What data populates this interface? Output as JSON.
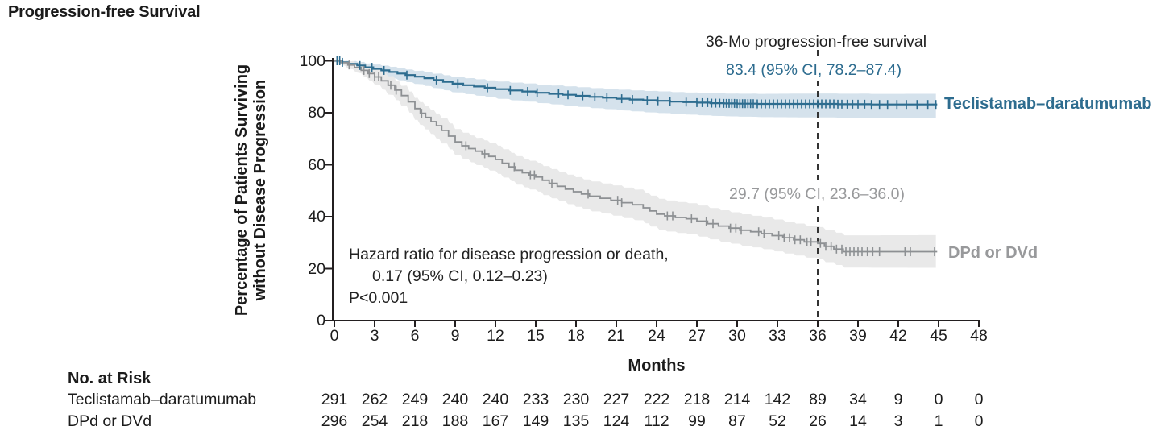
{
  "title": "Progression-free Survival",
  "colors": {
    "teclistamab_line": "#2d6c8f",
    "teclistamab_band": "#d5e2ec",
    "teclistamab_text": "#2d6c8f",
    "control_line": "#8d9093",
    "control_band": "#e9e9e9",
    "control_text": "#98999b",
    "axis": "#231f20",
    "dashed_line": "#333333",
    "dark_text": "#222222"
  },
  "chart_data": {
    "type": "line",
    "subtype": "kaplan-meier-step",
    "title": "Progression-free Survival",
    "xlabel": "Months",
    "ylabel_line1": "Percentage of Patients Surviving",
    "ylabel_line2": "without Disease Progression",
    "xlim": [
      0,
      48
    ],
    "ylim": [
      0,
      100
    ],
    "x_ticks": [
      0,
      3,
      6,
      9,
      12,
      15,
      18,
      21,
      24,
      27,
      30,
      33,
      36,
      39,
      42,
      45,
      48
    ],
    "y_ticks": [
      0,
      20,
      40,
      60,
      80,
      100
    ],
    "grid": "off",
    "dashed_line_x": 36,
    "annotation_heading": "36-Mo progression-free survival",
    "hazard_note_line1": "Hazard ratio for disease progression or death,",
    "hazard_note_line2": "0.17 (95% CI, 0.12–0.23)",
    "hazard_note_line3": "P<0.001",
    "series": [
      {
        "name": "Teclistamab–daratumumab",
        "ci_label": "83.4 (95% CI, 78.2–87.4)",
        "value_36mo": 83.4,
        "ci_36mo": [
          78.2,
          87.4
        ],
        "end_x": 44.9,
        "steps": [
          [
            0,
            100
          ],
          [
            0.6,
            99.4
          ],
          [
            1.1,
            98.8
          ],
          [
            1.7,
            98.2
          ],
          [
            2.3,
            97.5
          ],
          [
            2.9,
            96.9
          ],
          [
            3.5,
            96.3
          ],
          [
            4.1,
            95.7
          ],
          [
            4.7,
            95.1
          ],
          [
            5.3,
            94.5
          ],
          [
            6,
            93.9
          ],
          [
            6.7,
            93.3
          ],
          [
            7.4,
            92.6
          ],
          [
            8.1,
            91.9
          ],
          [
            8.8,
            91.2
          ],
          [
            9.6,
            90.6
          ],
          [
            10.4,
            90.1
          ],
          [
            11.2,
            89.6
          ],
          [
            12,
            89.1
          ],
          [
            13,
            88.6
          ],
          [
            14,
            88.2
          ],
          [
            15,
            87.7
          ],
          [
            16,
            87.3
          ],
          [
            17,
            86.9
          ],
          [
            18,
            86.5
          ],
          [
            19,
            86.1
          ],
          [
            20,
            85.8
          ],
          [
            21,
            85.4
          ],
          [
            22,
            85.1
          ],
          [
            23,
            84.8
          ],
          [
            24,
            84.6
          ],
          [
            25,
            84.3
          ],
          [
            26,
            84.1
          ],
          [
            27,
            83.9
          ],
          [
            28,
            83.7
          ],
          [
            29,
            83.6
          ],
          [
            30,
            83.5
          ],
          [
            31.5,
            83.4
          ],
          [
            36,
            83.4
          ],
          [
            37.5,
            83.3
          ],
          [
            40,
            83.2
          ],
          [
            44.9,
            83.2
          ]
        ],
        "ci_x": [
          0,
          2,
          4,
          8,
          12,
          18,
          24,
          30,
          36,
          45
        ],
        "ci_lower_offset": [
          0.5,
          1.6,
          2.4,
          3.2,
          3.7,
          4.2,
          4.7,
          5.0,
          5.2,
          5.3
        ],
        "ci_upper_offset": [
          0.4,
          1.3,
          1.9,
          2.5,
          2.9,
          3.3,
          3.6,
          3.8,
          4.0,
          4.1
        ],
        "censor_x": [
          0.2,
          0.4,
          0.6,
          1.9,
          2.8,
          3.7,
          5.4,
          7.6,
          9.2,
          11.4,
          13.1,
          14.4,
          15.1,
          16.7,
          17.4,
          18.5,
          19.4,
          20.3,
          21.4,
          22.2,
          23.3,
          24.1,
          25.0,
          26.2,
          27.0,
          27.4,
          27.8,
          28.1,
          28.4,
          28.7,
          29.0,
          29.2,
          29.4,
          29.6,
          29.8,
          30.0,
          30.2,
          30.4,
          30.6,
          30.8,
          31.0,
          31.2,
          31.5,
          31.8,
          32.1,
          32.4,
          32.7,
          33.0,
          33.3,
          33.6,
          33.9,
          34.2,
          34.5,
          34.8,
          35.1,
          35.4,
          35.7,
          36.0,
          36.3,
          36.6,
          36.9,
          37.2,
          37.5,
          37.8,
          38.2,
          38.6,
          39.0,
          39.5,
          40.0,
          40.6,
          41.2,
          41.9,
          42.6,
          43.4,
          44.2,
          44.8
        ]
      },
      {
        "name": "DPd or DVd",
        "ci_label": "29.7 (95% CI, 23.6–36.0)",
        "value_36mo": 29.7,
        "ci_36mo": [
          23.6,
          36.0
        ],
        "end_x": 44.9,
        "steps": [
          [
            0,
            100
          ],
          [
            0.5,
            99.3
          ],
          [
            1,
            98.4
          ],
          [
            1.5,
            97.4
          ],
          [
            2,
            96.3
          ],
          [
            2.5,
            95.1
          ],
          [
            3,
            93.8
          ],
          [
            3.5,
            92.3
          ],
          [
            4,
            90.6
          ],
          [
            4.5,
            88.7
          ],
          [
            5,
            86.6
          ],
          [
            5.5,
            84.2
          ],
          [
            6,
            81.6
          ],
          [
            6.4,
            79.8
          ],
          [
            6.8,
            78.2
          ],
          [
            7.2,
            76.6
          ],
          [
            7.6,
            75.0
          ],
          [
            8,
            73.2
          ],
          [
            8.5,
            71.0
          ],
          [
            9,
            68.8
          ],
          [
            9.5,
            67.3
          ],
          [
            10,
            66.2
          ],
          [
            10.5,
            65.2
          ],
          [
            11,
            64.2
          ],
          [
            11.5,
            63.2
          ],
          [
            12,
            62.0
          ],
          [
            12.5,
            60.6
          ],
          [
            13,
            59.2
          ],
          [
            13.5,
            57.9
          ],
          [
            14,
            56.9
          ],
          [
            14.5,
            56.1
          ],
          [
            15,
            55.3
          ],
          [
            15.5,
            54.0
          ],
          [
            16,
            52.8
          ],
          [
            16.6,
            51.7
          ],
          [
            17.2,
            50.6
          ],
          [
            17.8,
            49.6
          ],
          [
            18.4,
            48.7
          ],
          [
            19,
            47.9
          ],
          [
            19.8,
            47.1
          ],
          [
            20.6,
            46.3
          ],
          [
            21.4,
            45.4
          ],
          [
            22.2,
            44.6
          ],
          [
            23,
            43.4
          ],
          [
            23.5,
            42.2
          ],
          [
            24,
            41.0
          ],
          [
            24.6,
            40.3
          ],
          [
            25.4,
            39.7
          ],
          [
            26.2,
            39.2
          ],
          [
            27,
            38.3
          ],
          [
            27.8,
            37.3
          ],
          [
            28.6,
            36.4
          ],
          [
            29.4,
            35.6
          ],
          [
            30.2,
            34.8
          ],
          [
            31,
            34.2
          ],
          [
            31.8,
            33.5
          ],
          [
            32.6,
            32.7
          ],
          [
            33.4,
            31.9
          ],
          [
            34.2,
            31.1
          ],
          [
            35,
            30.3
          ],
          [
            36,
            29.7
          ],
          [
            36.5,
            28.6
          ],
          [
            37.2,
            27.5
          ],
          [
            37.9,
            26.5
          ],
          [
            44.9,
            26.5
          ]
        ],
        "ci_x": [
          0,
          2,
          4,
          8,
          12,
          18,
          24,
          30,
          36,
          45
        ],
        "ci_lower_offset": [
          0.5,
          2.2,
          3.6,
          5.0,
          5.5,
          5.8,
          6.0,
          6.0,
          6.1,
          6.2
        ],
        "ci_upper_offset": [
          0.4,
          2.0,
          3.4,
          4.8,
          5.3,
          5.6,
          5.9,
          6.1,
          6.3,
          6.4
        ],
        "censor_x": [
          1.1,
          2.2,
          2.6,
          3.0,
          3.3,
          4.2,
          4.6,
          6.5,
          9.8,
          11.2,
          13.4,
          14.6,
          14.9,
          16.2,
          18.9,
          21.1,
          21.4,
          24.8,
          25.2,
          26.6,
          27.7,
          28.2,
          29.5,
          29.9,
          30.3,
          31.6,
          32.0,
          33.1,
          33.5,
          33.9,
          34.3,
          34.7,
          35.2,
          35.5,
          36.2,
          36.6,
          37.0,
          37.4,
          37.8,
          38.1,
          38.4,
          38.7,
          39.0,
          39.3,
          39.7,
          40.1,
          40.6,
          42.5,
          42.9,
          44.7
        ]
      }
    ]
  },
  "risk_table": {
    "header": "No. at Risk",
    "rows": [
      {
        "label": "Teclistamab–daratumumab",
        "values": [
          291,
          262,
          249,
          240,
          240,
          233,
          230,
          227,
          222,
          218,
          214,
          142,
          89,
          34,
          9,
          0,
          0
        ]
      },
      {
        "label": "DPd or DVd",
        "values": [
          296,
          254,
          218,
          188,
          167,
          149,
          135,
          124,
          112,
          99,
          87,
          52,
          26,
          14,
          3,
          1,
          0
        ]
      }
    ]
  }
}
